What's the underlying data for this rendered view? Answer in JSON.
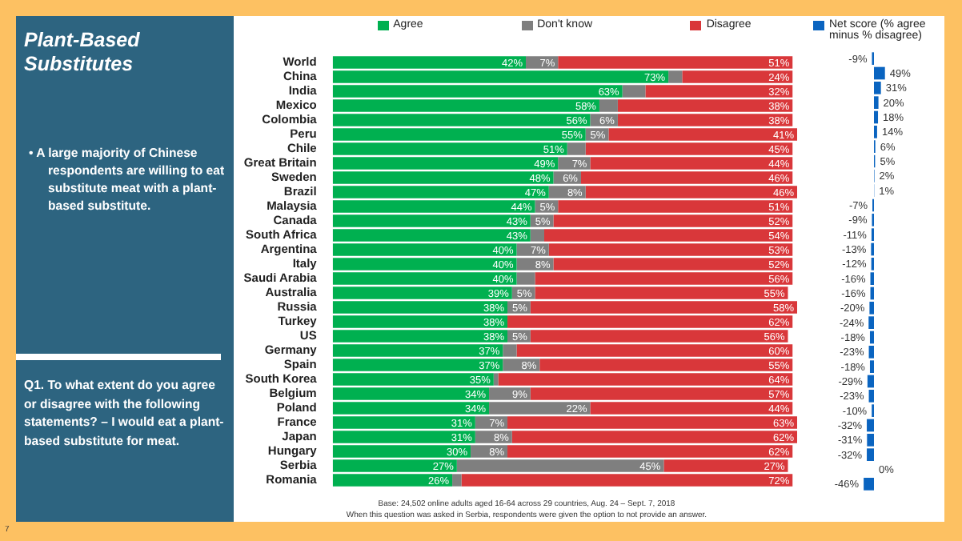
{
  "chart_data": [
    {
      "type": "bar",
      "orientation": "horizontal",
      "stacked": true,
      "title": "Plant-Based Substitutes",
      "annotations": [
        "• A large majority of Chinese respondents are willing to eat substitute meat with a plant-based substitute.",
        "Q1. To what extent do you agree or disagree with the following statements? – I would eat a plant-based substitute for meat.",
        "Base: 24,502 online adults aged 16-64 across 29 countries, Aug. 24 – Sept. 7, 2018",
        "When this question was asked in Serbia, respondents were given the option to not provide an answer.",
        "7"
      ],
      "categories": [
        "World",
        "China",
        "India",
        "Mexico",
        "Colombia",
        "Peru",
        "Chile",
        "Great Britain",
        "Sweden",
        "Brazil",
        "Malaysia",
        "Canada",
        "South Africa",
        "Argentina",
        "Italy",
        "Saudi Arabia",
        "Australia",
        "Russia",
        "Turkey",
        "US",
        "Germany",
        "Spain",
        "South Korea",
        "Belgium",
        "Poland",
        "France",
        "Japan",
        "Hungary",
        "Serbia",
        "Romania"
      ],
      "series": [
        {
          "name": "Agree",
          "color": "#00b050",
          "values": [
            42,
            73,
            63,
            58,
            56,
            55,
            51,
            49,
            48,
            47,
            44,
            43,
            43,
            40,
            40,
            40,
            39,
            38,
            38,
            38,
            37,
            37,
            35,
            34,
            34,
            31,
            31,
            30,
            27,
            26
          ],
          "value_labels": [
            "42%",
            "73%",
            "63%",
            "58%",
            "56%",
            "55%",
            "51%",
            "49%",
            "48%",
            "47%",
            "44%",
            "43%",
            "43%",
            "40%",
            "40%",
            "40%",
            "39%",
            "38%",
            "38%",
            "38%",
            "37%",
            "37%",
            "35%",
            "34%",
            "34%",
            "31%",
            "31%",
            "30%",
            "27%",
            "26%"
          ]
        },
        {
          "name": "Don't know",
          "color": "#7f7f7f",
          "values": [
            7,
            3,
            5,
            4,
            6,
            5,
            4,
            7,
            6,
            8,
            5,
            5,
            3,
            7,
            8,
            4,
            5,
            5,
            0,
            5,
            3,
            8,
            1,
            9,
            22,
            7,
            8,
            8,
            45,
            2
          ],
          "value_labels": [
            "7%",
            null,
            null,
            null,
            "6%",
            "5%",
            null,
            "7%",
            "6%",
            "8%",
            "5%",
            "5%",
            null,
            "7%",
            "8%",
            null,
            "5%",
            "5%",
            null,
            "5%",
            null,
            "8%",
            null,
            "9%",
            "22%",
            "7%",
            "8%",
            "8%",
            "45%",
            null
          ]
        },
        {
          "name": "Disagree",
          "color": "#d9373a",
          "values": [
            51,
            24,
            32,
            38,
            38,
            41,
            45,
            44,
            46,
            46,
            51,
            52,
            54,
            53,
            52,
            56,
            55,
            58,
            62,
            56,
            60,
            55,
            64,
            57,
            44,
            63,
            62,
            62,
            27,
            72
          ],
          "value_labels": [
            "51%",
            "24%",
            "32%",
            "38%",
            "38%",
            "41%",
            "45%",
            "44%",
            "46%",
            "46%",
            "51%",
            "52%",
            "54%",
            "53%",
            "52%",
            "56%",
            "55%",
            "58%",
            "62%",
            "56%",
            "60%",
            "55%",
            "64%",
            "57%",
            "44%",
            "63%",
            "62%",
            "62%",
            "27%",
            "72%"
          ]
        }
      ],
      "xlim": [
        0,
        101
      ],
      "tick_labels": "y",
      "legend": "top"
    },
    {
      "type": "bar",
      "orientation": "horizontal",
      "categories": [
        null,
        null,
        null,
        null,
        null,
        null,
        null,
        null,
        null,
        null,
        null,
        null,
        null,
        null,
        null,
        null,
        null,
        null,
        null,
        null,
        null,
        null,
        null,
        null,
        null,
        null,
        null,
        null,
        null,
        null
      ],
      "series": [
        {
          "name": "Net score (% agree minus % disagree)",
          "color": "#0a64c0",
          "values": [
            -9,
            49,
            31,
            20,
            18,
            14,
            6,
            5,
            2,
            1,
            -7,
            -9,
            -11,
            -13,
            -12,
            -16,
            -16,
            -20,
            -24,
            -18,
            -23,
            -18,
            -29,
            -23,
            -10,
            -32,
            -31,
            -32,
            0,
            -46
          ],
          "value_labels": [
            "-9%",
            "49%",
            "31%",
            "20%",
            "18%",
            "14%",
            "6%",
            "5%",
            "2%",
            "1%",
            "-7%",
            "-9%",
            "-11%",
            "-13%",
            "-12%",
            "-16%",
            "-16%",
            "-20%",
            "-24%",
            "-18%",
            "-23%",
            "-18%",
            "-29%",
            "-23%",
            "-10%",
            "-32%",
            "-31%",
            "-32%",
            "0%",
            "-46%"
          ]
        }
      ],
      "tick_labels": false,
      "legend": "top"
    }
  ]
}
